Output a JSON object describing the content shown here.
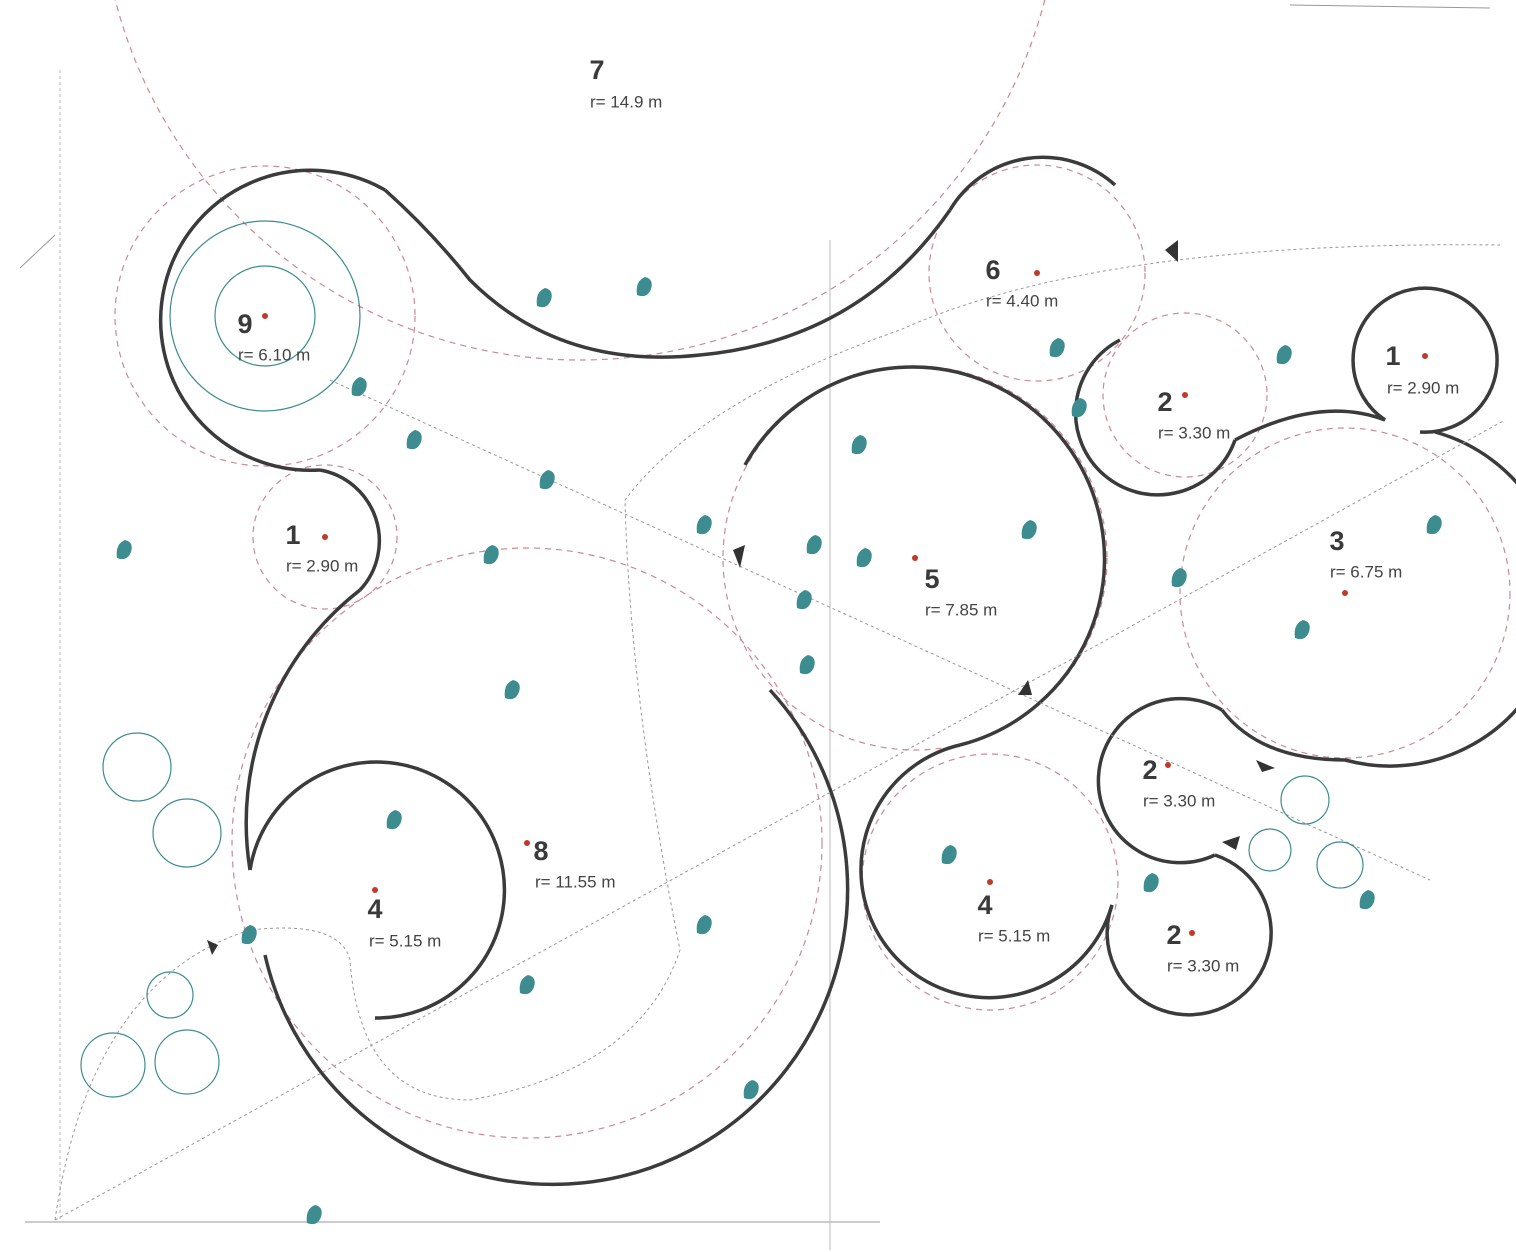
{
  "zones": [
    {
      "number": "7",
      "radius": "r= 14.9 m"
    },
    {
      "number": "9",
      "radius": "r= 6.10 m"
    },
    {
      "number": "6",
      "radius": "r= 4.40 m"
    },
    {
      "number": "1",
      "radius": "r= 2.90 m"
    },
    {
      "number": "2",
      "radius": "r= 3.30 m"
    },
    {
      "number": "1",
      "radius": "r= 2.90 m"
    },
    {
      "number": "5",
      "radius": "r= 7.85 m"
    },
    {
      "number": "3",
      "radius": "r= 6.75 m"
    },
    {
      "number": "8",
      "radius": "r= 11.55 m"
    },
    {
      "number": "4",
      "radius": "r= 5.15 m"
    },
    {
      "number": "2",
      "radius": "r= 3.30 m"
    },
    {
      "number": "4",
      "radius": "r= 5.15 m"
    },
    {
      "number": "2",
      "radius": "r= 3.30 m"
    }
  ]
}
